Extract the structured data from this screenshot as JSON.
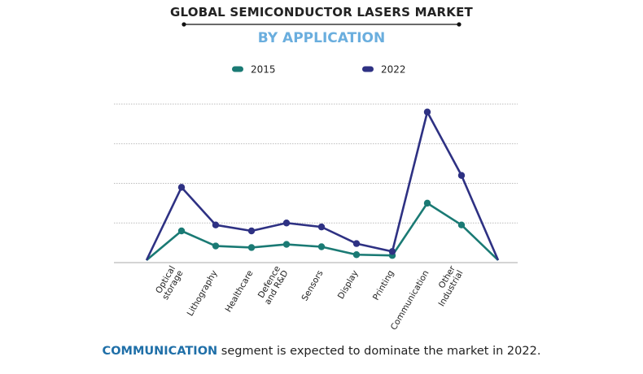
{
  "header": {
    "title": "GLOBAL SEMICONDUCTOR LASERS MARKET",
    "subtitle": "BY APPLICATION"
  },
  "footer": {
    "highlight": "COMMUNICATION",
    "text": " segment is expected to dominate the market in 2022."
  },
  "colors": {
    "series_2015": "#1a7a74",
    "series_2022": "#2e3183",
    "grid": "#bbbbbb",
    "subtitle": "#6aaede",
    "footer_highlight": "#1f6fa8"
  },
  "chart_data": {
    "type": "line",
    "title": "GLOBAL SEMICONDUCTOR LASERS MARKET",
    "subtitle": "BY APPLICATION",
    "categories": [
      "Optical storage",
      "Lithography",
      "Healthcare",
      "Defence and R&D",
      "Sensors",
      "Display",
      "Printing",
      "Communication",
      "Other Industrial"
    ],
    "category_lines": [
      [
        "Optical",
        "storage"
      ],
      [
        "Lithography"
      ],
      [
        "Healthcare"
      ],
      [
        "Defence",
        "and R&D"
      ],
      [
        "Sensors"
      ],
      [
        "Display"
      ],
      [
        "Printing"
      ],
      [
        "Communication"
      ],
      [
        "Other",
        "Industrial"
      ]
    ],
    "series": [
      {
        "name": "2015",
        "values": [
          0.8,
          0.42,
          0.38,
          0.46,
          0.4,
          0.2,
          0.18,
          1.5,
          0.95
        ]
      },
      {
        "name": "2022",
        "values": [
          1.9,
          0.95,
          0.8,
          1.0,
          0.9,
          0.48,
          0.28,
          3.8,
          2.2
        ]
      }
    ],
    "ylim": [
      0,
      4
    ],
    "xlabel": "",
    "ylabel": "",
    "grid": true,
    "y_tick_labels_shown": false,
    "legend": "top-center"
  }
}
